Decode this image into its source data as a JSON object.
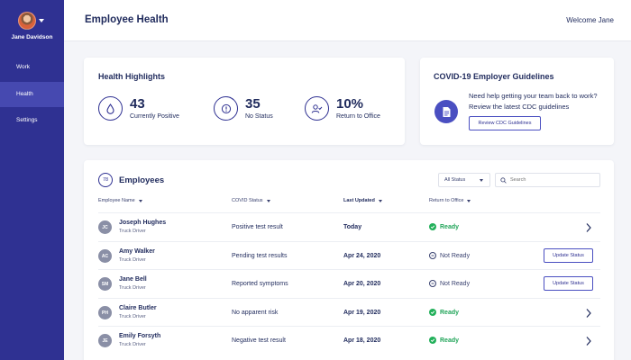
{
  "user": {
    "name": "Jane Davidson"
  },
  "nav": [
    {
      "label": "Work"
    },
    {
      "label": "Health"
    },
    {
      "label": "Settings"
    }
  ],
  "header": {
    "title": "Employee Health",
    "welcome": "Welcome Jane"
  },
  "highlights": {
    "title": "Health Highlights",
    "stats": [
      {
        "value": "43",
        "label": "Currently Positive",
        "icon": "drop-icon"
      },
      {
        "value": "35",
        "label": "No Status",
        "icon": "info-icon"
      },
      {
        "value": "10%",
        "label": "Return to Office",
        "icon": "user-check-icon"
      }
    ]
  },
  "guidelines": {
    "title": "COVID-19 Employer Guidelines",
    "text": "Need help getting your team back to work? Review the latest CDC guidelines",
    "button": "Review CDC Guidelines"
  },
  "employees": {
    "count": "78",
    "title": "Employees",
    "filter": "All Status",
    "search_placeholder": "Search",
    "columns": [
      "Employee Name",
      "COVID Status",
      "Last Updated",
      "Return to Office"
    ],
    "update_label": "Update Status",
    "rows": [
      {
        "initials": "JC",
        "name": "Joseph Hughes",
        "role": "Truck Driver",
        "status": "Positive test result",
        "updated": "Today",
        "return": "Ready",
        "ready": true
      },
      {
        "initials": "AC",
        "name": "Amy Walker",
        "role": "Truck Driver",
        "status": "Pending test results",
        "updated": "Apr 24, 2020",
        "return": "Not Ready",
        "ready": false
      },
      {
        "initials": "SM",
        "name": "Jane Bell",
        "role": "Truck Driver",
        "status": "Reported symptoms",
        "updated": "Apr 20, 2020",
        "return": "Not Ready",
        "ready": false
      },
      {
        "initials": "PH",
        "name": "Claire Butler",
        "role": "Truck Driver",
        "status": "No apparent risk",
        "updated": "Apr 19, 2020",
        "return": "Ready",
        "ready": true
      },
      {
        "initials": "JE",
        "name": "Emily Forsyth",
        "role": "Truck Driver",
        "status": "Negative test result",
        "updated": "Apr 18, 2020",
        "return": "Ready",
        "ready": true
      }
    ]
  },
  "colors": {
    "sidebar": "#2f3192",
    "active_nav": "#4649b0",
    "ready": "#22b05a",
    "text": "#1f2a5c"
  }
}
